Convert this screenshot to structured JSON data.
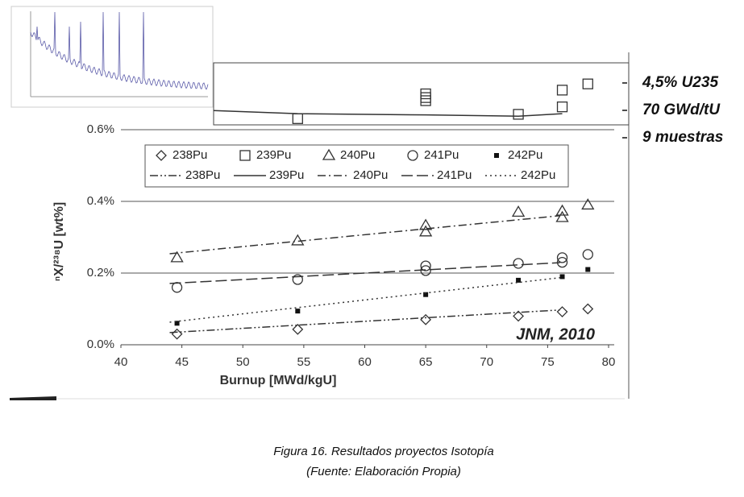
{
  "chart_data": [
    {
      "type": "scatter-line",
      "xlabel": "Burnup [MWd/kgU]",
      "ylabel": "ⁿX/²³⁸U [wt%]",
      "annotation": "JNM, 2010",
      "xlim": [
        40,
        80
      ],
      "xticks": [
        40,
        45,
        50,
        55,
        60,
        65,
        70,
        75,
        80
      ],
      "ylim": [
        0,
        0.6
      ],
      "yticks": [
        {
          "value": 0,
          "label": "0.0%"
        },
        {
          "value": 0.2,
          "label": "0.2%"
        },
        {
          "value": 0.4,
          "label": "0.4%"
        },
        {
          "value": 0.6,
          "label": "0.6%"
        }
      ],
      "grid": true,
      "series": [
        {
          "name": "238Pu",
          "kind": "marker",
          "marker": "diamond",
          "color": "#333333",
          "x": [
            44.6,
            54.5,
            65,
            72.6,
            76.2,
            78.3
          ],
          "values": [
            0.03,
            0.043,
            0.07,
            0.08,
            0.092,
            0.1
          ]
        },
        {
          "name": "239Pu",
          "kind": "marker",
          "marker": "square",
          "color": "#333333",
          "x": [],
          "values": []
        },
        {
          "name": "240Pu",
          "kind": "marker",
          "marker": "triangle",
          "color": "#333333",
          "x": [
            44.6,
            54.5,
            65,
            65,
            72.6,
            76.2,
            76.2,
            78.3
          ],
          "values": [
            0.243,
            0.29,
            0.333,
            0.315,
            0.37,
            0.373,
            0.355,
            0.39
          ]
        },
        {
          "name": "241Pu",
          "kind": "marker",
          "marker": "circle",
          "color": "#333333",
          "x": [
            44.6,
            54.5,
            65,
            65,
            72.6,
            76.2,
            76.2,
            78.3
          ],
          "values": [
            0.16,
            0.182,
            0.22,
            0.207,
            0.227,
            0.243,
            0.23,
            0.252
          ]
        },
        {
          "name": "242Pu",
          "kind": "marker",
          "marker": "dot",
          "color": "#111111",
          "x": [
            44.6,
            54.5,
            65,
            72.6,
            76.2,
            78.3
          ],
          "values": [
            0.06,
            0.094,
            0.14,
            0.18,
            0.19,
            0.21
          ]
        },
        {
          "name": "238Pu",
          "kind": "line",
          "dash": "dashdotdot",
          "color": "#333333",
          "x": [
            44,
            76
          ],
          "values": [
            0.034,
            0.097
          ]
        },
        {
          "name": "239Pu",
          "kind": "line",
          "dash": "solid",
          "color": "#333333",
          "x": [],
          "values": []
        },
        {
          "name": "240Pu",
          "kind": "line",
          "dash": "dashdot",
          "color": "#333333",
          "x": [
            44,
            76
          ],
          "values": [
            0.254,
            0.36
          ]
        },
        {
          "name": "241Pu",
          "kind": "line",
          "dash": "longdash",
          "color": "#333333",
          "x": [
            44,
            76
          ],
          "values": [
            0.171,
            0.229
          ]
        },
        {
          "name": "242Pu",
          "kind": "line",
          "dash": "dotted",
          "color": "#333333",
          "x": [
            44,
            76
          ],
          "values": [
            0.063,
            0.187
          ]
        }
      ]
    },
    {
      "type": "scatter-line",
      "xlim": [
        40,
        80
      ],
      "ylim": [
        0,
        1
      ],
      "series": [
        {
          "kind": "marker",
          "marker": "square",
          "color": "#333333",
          "x": [
            54.5,
            65,
            65,
            65,
            72.6,
            76.2,
            76.2,
            78.3
          ],
          "values": [
            0.1,
            0.5,
            0.44,
            0.39,
            0.17,
            0.56,
            0.29,
            0.66
          ]
        },
        {
          "kind": "line",
          "dash": "solid",
          "color": "#333333",
          "x": [
            47.6,
            54.5,
            65,
            72.6,
            76.2
          ],
          "values": [
            0.23,
            0.18,
            0.16,
            0.14,
            0.18
          ]
        }
      ]
    }
  ],
  "annotations": [
    "4,5% U235",
    "70 GWd/tU",
    "9 muestras"
  ],
  "caption": [
    "Figura 16. Resultados proyectos Isotopía",
    "(Fuente: Elaboración Propia)"
  ]
}
